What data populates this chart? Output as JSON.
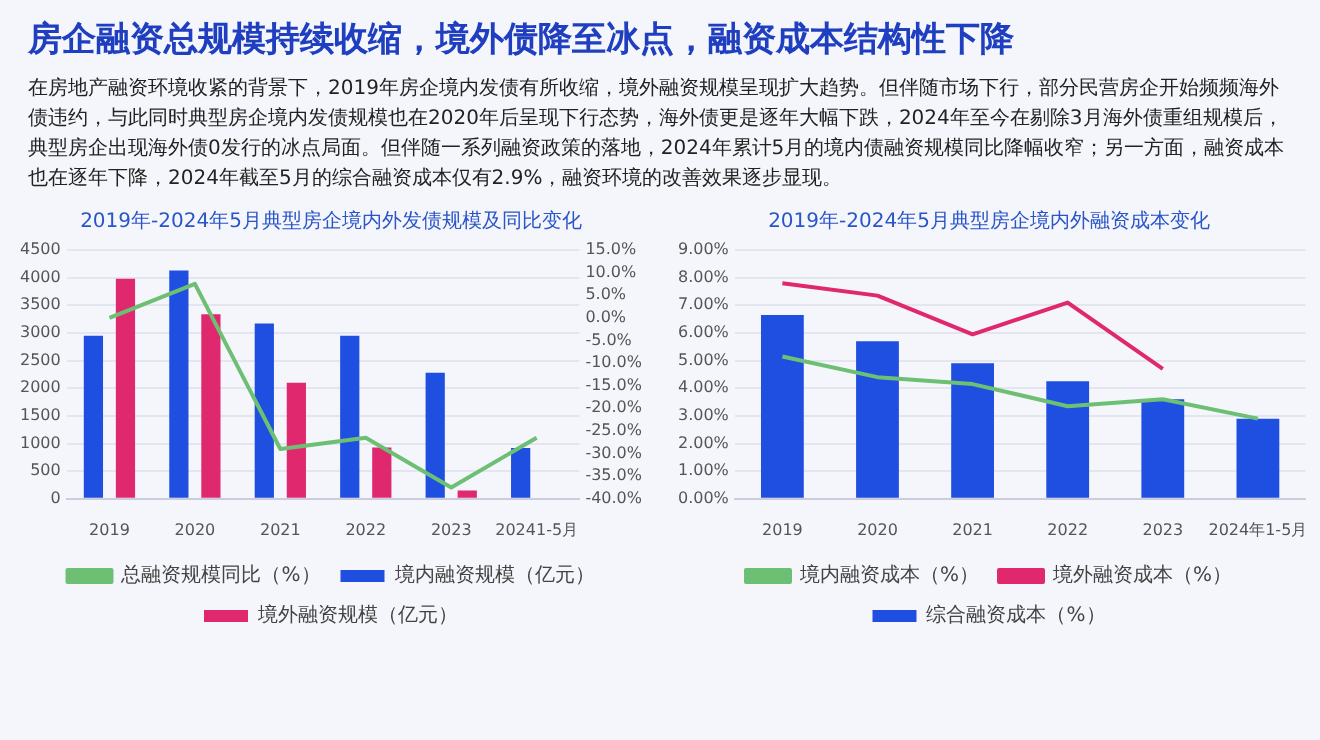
{
  "chart_data": [
    {
      "type": "other",
      "title": "房企融资总规模持续收缩，境外债降至冰点，融资成本结构性下降",
      "annotations": [
        "在房地产融资环境收紧的背景下，2019年房企境内发债有所收缩，境外融资规模呈现扩大趋势。但伴随市场下行，部分民营房企开始频频海外债违约，与此同时典型房企境内发债规模也在2020年后呈现下行态势，海外债更是逐年大幅下跌，2024年至今在剔除3月海外债重组规模后，典型房企出现海外债0发行的冰点局面。但伴随一系列融资政策的落地，2024年累计5月的境内债融资规模同比降幅收窄；另一方面，融资成本也在逐年下降，2024年截至5月的综合融资成本仅有2.9%，融资环境的改善效果逐步显现。"
      ]
    },
    {
      "type": "bar",
      "title": "2019年-2024年5月典型房企境内外发债规模及同比变化",
      "categories": [
        "2019",
        "2020",
        "2021",
        "2022",
        "2023",
        "20241-5月"
      ],
      "series": [
        {
          "name": "境内融资规模（亿元）",
          "color": "#1f4fe0",
          "values": [
            2950,
            4130,
            3170,
            2950,
            2280,
            920
          ]
        },
        {
          "name": "境外融资规模（亿元）",
          "color": "#e0286e",
          "values": [
            3980,
            3340,
            2100,
            930,
            150,
            null
          ]
        },
        {
          "name": "总融资规模同比（%）",
          "color": "#6dbf73",
          "type": "line",
          "axis": "y2",
          "values": [
            0,
            7.5,
            -29,
            -26.5,
            -37.5,
            -26.5
          ]
        }
      ],
      "ylim": [
        0,
        4500
      ],
      "yticks": [
        0,
        500,
        1000,
        1500,
        2000,
        2500,
        3000,
        3500,
        4000,
        4500
      ],
      "y2lim": [
        -40,
        15
      ],
      "y2ticks": [
        {
          "value": -40,
          "label": "-40.0%"
        },
        {
          "value": -35,
          "label": "-35.0%"
        },
        {
          "value": -30,
          "label": "-30.0%"
        },
        {
          "value": -25,
          "label": "-25.0%"
        },
        {
          "value": -20,
          "label": "-20.0%"
        },
        {
          "value": -15,
          "label": "-15.0%"
        },
        {
          "value": -10,
          "label": "-10.0%"
        },
        {
          "value": -5,
          "label": "-5.0%"
        },
        {
          "value": 0,
          "label": "0.0%"
        },
        {
          "value": 5,
          "label": "5.0%"
        },
        {
          "value": 10,
          "label": "10.0%"
        },
        {
          "value": 15,
          "label": "15.0%"
        }
      ],
      "grid": "y",
      "legend": "bottom",
      "marker": "none"
    },
    {
      "type": "bar",
      "title": "2019年-2024年5月典型房企境内外融资成本变化",
      "categories": [
        "2019",
        "2020",
        "2021",
        "2022",
        "2023",
        "2024年1-5月"
      ],
      "series": [
        {
          "name": "综合融资成本（%）",
          "color": "#1f4fe0",
          "values": [
            6.65,
            5.7,
            4.9,
            4.25,
            3.6,
            2.9
          ]
        },
        {
          "name": "境内融资成本（%）",
          "color": "#6dbf73",
          "type": "line",
          "values": [
            5.15,
            4.4,
            4.15,
            3.35,
            3.6,
            2.9
          ]
        },
        {
          "name": "境外融资成本（%）",
          "color": "#e0286e",
          "type": "line",
          "values": [
            7.8,
            7.35,
            5.95,
            7.1,
            4.7,
            null
          ]
        }
      ],
      "ylim": [
        0,
        9
      ],
      "yticks": [
        {
          "value": 0,
          "label": "0.00%"
        },
        {
          "value": 1,
          "label": "1.00%"
        },
        {
          "value": 2,
          "label": "2.00%"
        },
        {
          "value": 3,
          "label": "3.00%"
        },
        {
          "value": 4,
          "label": "4.00%"
        },
        {
          "value": 5,
          "label": "5.00%"
        },
        {
          "value": 6,
          "label": "6.00%"
        },
        {
          "value": 7,
          "label": "7.00%"
        },
        {
          "value": 8,
          "label": "8.00%"
        },
        {
          "value": 9,
          "label": "9.00%"
        }
      ],
      "grid": "y",
      "legend": "bottom",
      "marker": "none"
    }
  ]
}
